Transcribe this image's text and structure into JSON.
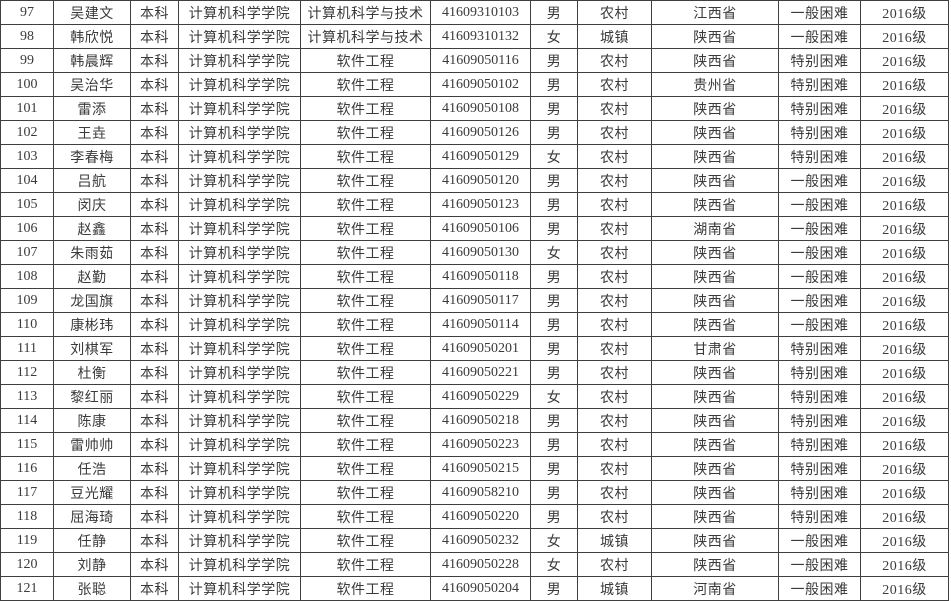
{
  "colors": {
    "background": "#ffffff",
    "grid_border": "#3f3f3f",
    "text": "#3a3a3a"
  },
  "table": {
    "rows": [
      [
        "97",
        "吴建文",
        "本科",
        "计算机科学学院",
        "计算机科学与技术",
        "41609310103",
        "男",
        "农村",
        "江西省",
        "一般困难",
        "2016级"
      ],
      [
        "98",
        "韩欣悦",
        "本科",
        "计算机科学学院",
        "计算机科学与技术",
        "41609310132",
        "女",
        "城镇",
        "陕西省",
        "一般困难",
        "2016级"
      ],
      [
        "99",
        "韩晨辉",
        "本科",
        "计算机科学学院",
        "软件工程",
        "41609050116",
        "男",
        "农村",
        "陕西省",
        "特别困难",
        "2016级"
      ],
      [
        "100",
        "吴治华",
        "本科",
        "计算机科学学院",
        "软件工程",
        "41609050102",
        "男",
        "农村",
        "贵州省",
        "特别困难",
        "2016级"
      ],
      [
        "101",
        "雷添",
        "本科",
        "计算机科学学院",
        "软件工程",
        "41609050108",
        "男",
        "农村",
        "陕西省",
        "特别困难",
        "2016级"
      ],
      [
        "102",
        "王垚",
        "本科",
        "计算机科学学院",
        "软件工程",
        "41609050126",
        "男",
        "农村",
        "陕西省",
        "特别困难",
        "2016级"
      ],
      [
        "103",
        "李春梅",
        "本科",
        "计算机科学学院",
        "软件工程",
        "41609050129",
        "女",
        "农村",
        "陕西省",
        "特别困难",
        "2016级"
      ],
      [
        "104",
        "吕航",
        "本科",
        "计算机科学学院",
        "软件工程",
        "41609050120",
        "男",
        "农村",
        "陕西省",
        "一般困难",
        "2016级"
      ],
      [
        "105",
        "闵庆",
        "本科",
        "计算机科学学院",
        "软件工程",
        "41609050123",
        "男",
        "农村",
        "陕西省",
        "一般困难",
        "2016级"
      ],
      [
        "106",
        "赵鑫",
        "本科",
        "计算机科学学院",
        "软件工程",
        "41609050106",
        "男",
        "农村",
        "湖南省",
        "一般困难",
        "2016级"
      ],
      [
        "107",
        "朱雨茹",
        "本科",
        "计算机科学学院",
        "软件工程",
        "41609050130",
        "女",
        "农村",
        "陕西省",
        "一般困难",
        "2016级"
      ],
      [
        "108",
        "赵勤",
        "本科",
        "计算机科学学院",
        "软件工程",
        "41609050118",
        "男",
        "农村",
        "陕西省",
        "一般困难",
        "2016级"
      ],
      [
        "109",
        "龙国旗",
        "本科",
        "计算机科学学院",
        "软件工程",
        "41609050117",
        "男",
        "农村",
        "陕西省",
        "一般困难",
        "2016级"
      ],
      [
        "110",
        "康彬玮",
        "本科",
        "计算机科学学院",
        "软件工程",
        "41609050114",
        "男",
        "农村",
        "陕西省",
        "一般困难",
        "2016级"
      ],
      [
        "111",
        "刘棋军",
        "本科",
        "计算机科学学院",
        "软件工程",
        "41609050201",
        "男",
        "农村",
        "甘肃省",
        "特别困难",
        "2016级"
      ],
      [
        "112",
        "杜衡",
        "本科",
        "计算机科学学院",
        "软件工程",
        "41609050221",
        "男",
        "农村",
        "陕西省",
        "特别困难",
        "2016级"
      ],
      [
        "113",
        "黎红丽",
        "本科",
        "计算机科学学院",
        "软件工程",
        "41609050229",
        "女",
        "农村",
        "陕西省",
        "特别困难",
        "2016级"
      ],
      [
        "114",
        "陈康",
        "本科",
        "计算机科学学院",
        "软件工程",
        "41609050218",
        "男",
        "农村",
        "陕西省",
        "特别困难",
        "2016级"
      ],
      [
        "115",
        "雷帅帅",
        "本科",
        "计算机科学学院",
        "软件工程",
        "41609050223",
        "男",
        "农村",
        "陕西省",
        "特别困难",
        "2016级"
      ],
      [
        "116",
        "任浩",
        "本科",
        "计算机科学学院",
        "软件工程",
        "41609050215",
        "男",
        "农村",
        "陕西省",
        "特别困难",
        "2016级"
      ],
      [
        "117",
        "豆光耀",
        "本科",
        "计算机科学学院",
        "软件工程",
        "41609058210",
        "男",
        "农村",
        "陕西省",
        "特别困难",
        "2016级"
      ],
      [
        "118",
        "屈海琦",
        "本科",
        "计算机科学学院",
        "软件工程",
        "41609050220",
        "男",
        "农村",
        "陕西省",
        "特别困难",
        "2016级"
      ],
      [
        "119",
        "任静",
        "本科",
        "计算机科学学院",
        "软件工程",
        "41609050232",
        "女",
        "城镇",
        "陕西省",
        "一般困难",
        "2016级"
      ],
      [
        "120",
        "刘静",
        "本科",
        "计算机科学学院",
        "软件工程",
        "41609050228",
        "女",
        "农村",
        "陕西省",
        "一般困难",
        "2016级"
      ],
      [
        "121",
        "张聪",
        "本科",
        "计算机科学学院",
        "软件工程",
        "41609050204",
        "男",
        "城镇",
        "河南省",
        "一般困难",
        "2016级"
      ]
    ]
  }
}
